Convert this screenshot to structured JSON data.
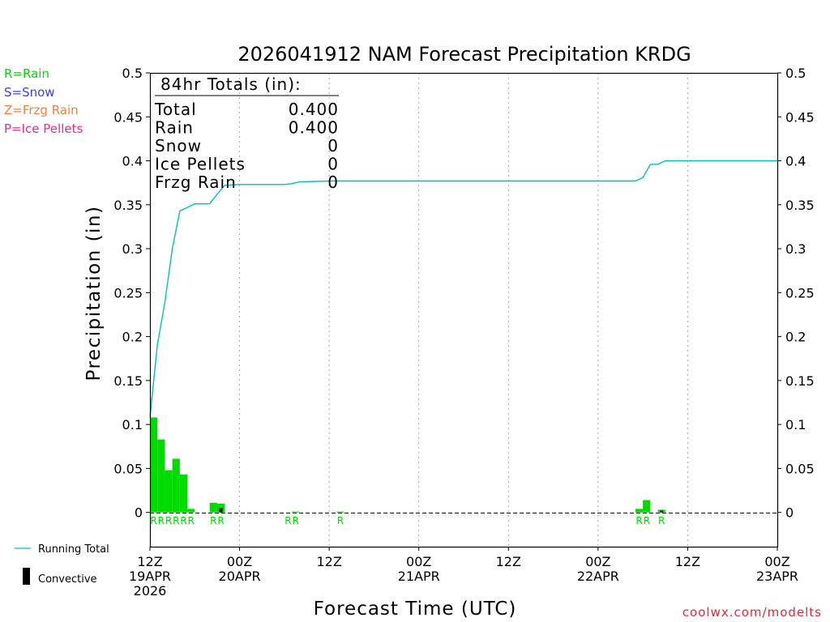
{
  "legend": {
    "rain": "R=Rain",
    "snow": "S=Snow",
    "frzg": "Z=Frzg Rain",
    "ice": "P=Ice Pellets",
    "running_total": "Running Total",
    "convective": "Convective"
  },
  "colors": {
    "rain": "#00dc00",
    "snow": "#3c3cff",
    "frzg": "#f0823c",
    "ice": "#f0288c",
    "running_total": "#00c0c0",
    "convective": "#000000",
    "credit": "#e0283c"
  },
  "totals": {
    "header": "84hr Totals (in):",
    "rows": [
      {
        "label": "Total",
        "value": "0.400"
      },
      {
        "label": "Rain",
        "value": "0.400"
      },
      {
        "label": "Snow",
        "value": "0"
      },
      {
        "label": "Ice Pellets",
        "value": "0"
      },
      {
        "label": "Frzg Rain",
        "value": "0"
      }
    ]
  },
  "credit": "coolwx.com/modelts",
  "chart_data": {
    "type": "bar",
    "title": "2026041912 NAM Forecast Precipitation KRDG",
    "xlabel": "Forecast Time (UTC)",
    "ylabel": "Precipitation (in)",
    "ylim": [
      -0.039,
      0.5
    ],
    "xlim": [
      0,
      84
    ],
    "y_ticks": [
      "0",
      "0.05",
      "0.1",
      "0.15",
      "0.2",
      "0.25",
      "0.3",
      "0.35",
      "0.4",
      "0.45",
      "0.5"
    ],
    "x_ticks": [
      {
        "hour": 0,
        "lines": [
          "12Z",
          "19APR",
          "2026"
        ]
      },
      {
        "hour": 12,
        "lines": [
          "00Z",
          "20APR"
        ]
      },
      {
        "hour": 24,
        "lines": [
          "12Z"
        ]
      },
      {
        "hour": 36,
        "lines": [
          "00Z",
          "21APR"
        ]
      },
      {
        "hour": 48,
        "lines": [
          "12Z"
        ]
      },
      {
        "hour": 60,
        "lines": [
          "00Z",
          "22APR"
        ]
      },
      {
        "hour": 72,
        "lines": [
          "12Z"
        ]
      },
      {
        "hour": 84,
        "lines": [
          "00Z",
          "23APR"
        ]
      }
    ],
    "bars": [
      {
        "hour": 1,
        "value": 0.108,
        "convective": 0
      },
      {
        "hour": 2,
        "value": 0.083,
        "convective": 0
      },
      {
        "hour": 3,
        "value": 0.048,
        "convective": 0
      },
      {
        "hour": 4,
        "value": 0.061,
        "convective": 0
      },
      {
        "hour": 5,
        "value": 0.043,
        "convective": 0
      },
      {
        "hour": 6,
        "value": 0.004,
        "convective": 0
      },
      {
        "hour": 9,
        "value": 0.011,
        "convective": 0
      },
      {
        "hour": 10,
        "value": 0.01,
        "convective": 0.005
      },
      {
        "hour": 20,
        "value": 0.001,
        "convective": 0
      },
      {
        "hour": 26,
        "value": 0.001,
        "convective": 0
      },
      {
        "hour": 66,
        "value": 0.004,
        "convective": 0
      },
      {
        "hour": 67,
        "value": 0.014,
        "convective": 0
      },
      {
        "hour": 69,
        "value": 0.003,
        "convective": 0.002
      }
    ],
    "ptype_labels": [
      {
        "hour": 1,
        "text": "R"
      },
      {
        "hour": 2,
        "text": "R"
      },
      {
        "hour": 3,
        "text": "R"
      },
      {
        "hour": 4,
        "text": "R"
      },
      {
        "hour": 5,
        "text": "R"
      },
      {
        "hour": 6,
        "text": "R"
      },
      {
        "hour": 9,
        "text": "R"
      },
      {
        "hour": 10,
        "text": "R"
      },
      {
        "hour": 19,
        "text": "R"
      },
      {
        "hour": 20,
        "text": "R"
      },
      {
        "hour": 26,
        "text": "R"
      },
      {
        "hour": 66,
        "text": "R"
      },
      {
        "hour": 67,
        "text": "R"
      },
      {
        "hour": 69,
        "text": "R"
      }
    ],
    "running_total": {
      "hours": [
        0,
        1,
        2,
        3,
        4,
        5,
        6,
        7,
        8,
        9,
        10,
        12,
        18,
        19,
        20,
        24,
        30,
        40,
        50,
        60,
        65,
        66,
        67,
        68,
        69,
        72,
        84
      ],
      "values": [
        0.108,
        0.191,
        0.239,
        0.3,
        0.343,
        0.347,
        0.351,
        0.351,
        0.351,
        0.362,
        0.372,
        0.373,
        0.373,
        0.374,
        0.376,
        0.377,
        0.377,
        0.377,
        0.377,
        0.377,
        0.377,
        0.381,
        0.396,
        0.396,
        0.4,
        0.4,
        0.4
      ]
    }
  }
}
